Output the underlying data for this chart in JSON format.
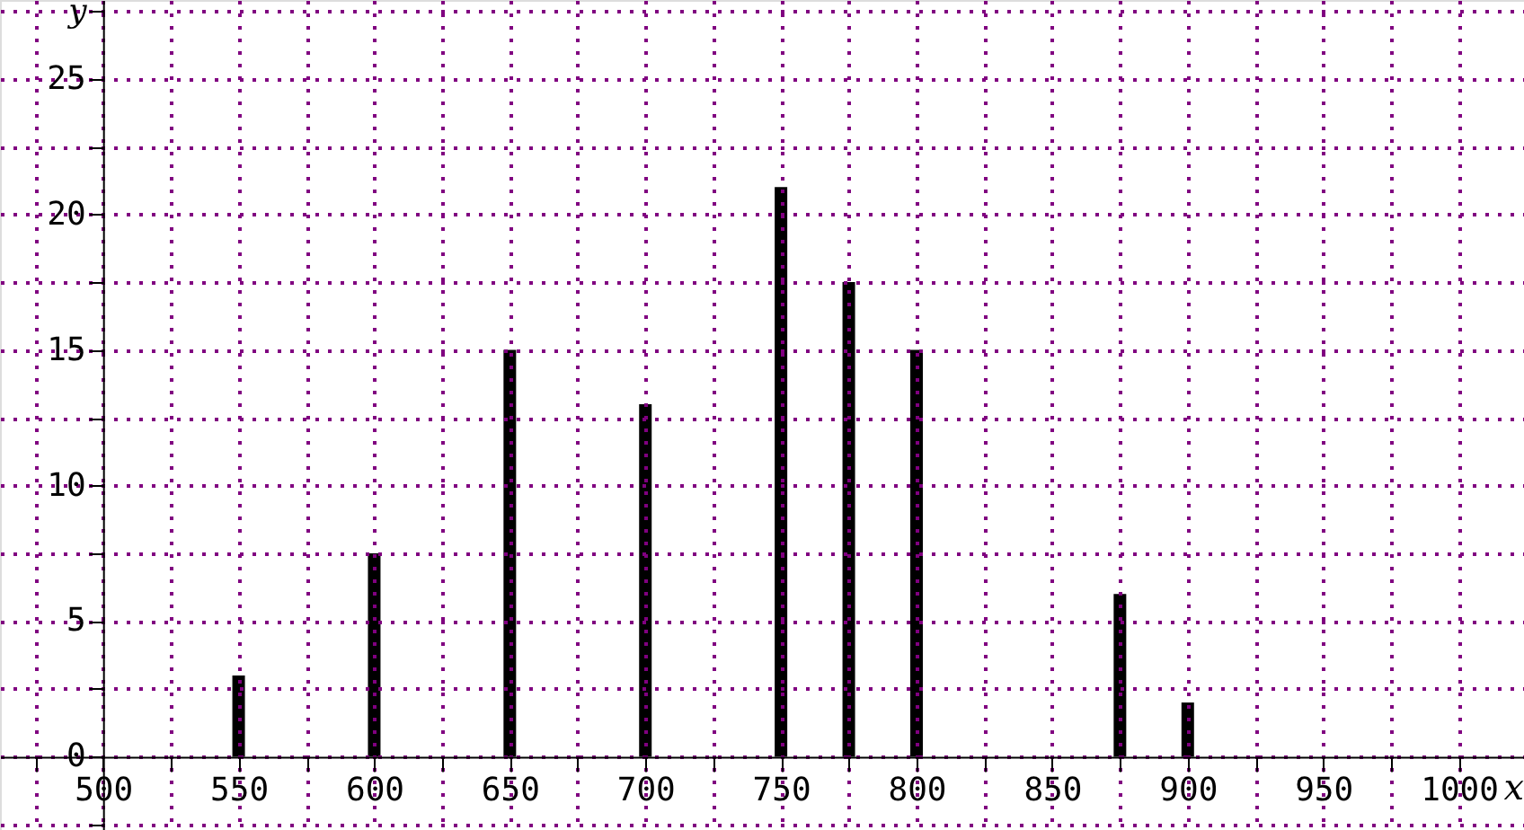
{
  "chart_data": {
    "type": "bar",
    "xlabel": "x",
    "ylabel": "y",
    "x": [
      550,
      600,
      650,
      700,
      750,
      775,
      800,
      875,
      900
    ],
    "series": [
      {
        "color": "#000000",
        "values": [
          3,
          7.5,
          15,
          13,
          21,
          17.5,
          15,
          6,
          2
        ]
      }
    ],
    "xlim": [
      462,
      1024
    ],
    "ylim": [
      -2.7,
      27.9
    ],
    "xticks": [
      {
        "value": 475,
        "label": null
      },
      500,
      {
        "value": 525,
        "label": null
      },
      550,
      {
        "value": 575,
        "label": null
      },
      600,
      {
        "value": 625,
        "label": null
      },
      650,
      {
        "value": 675,
        "label": null
      },
      700,
      {
        "value": 725,
        "label": null
      },
      750,
      {
        "value": 775,
        "label": null
      },
      800,
      {
        "value": 825,
        "label": null
      },
      850,
      {
        "value": 875,
        "label": null
      },
      900,
      {
        "value": 925,
        "label": null
      },
      950,
      {
        "value": 975,
        "label": null
      },
      1000
    ],
    "yticks": [
      {
        "value": -2.5,
        "label": null
      },
      0,
      {
        "value": 2.5,
        "label": null
      },
      5,
      {
        "value": 7.5,
        "label": null
      },
      10,
      {
        "value": 12.5,
        "label": null
      },
      15,
      {
        "value": 17.5,
        "label": null
      },
      20,
      {
        "value": 22.5,
        "label": null
      },
      25,
      {
        "value": 27.5,
        "label": null
      }
    ],
    "grid": true
  }
}
